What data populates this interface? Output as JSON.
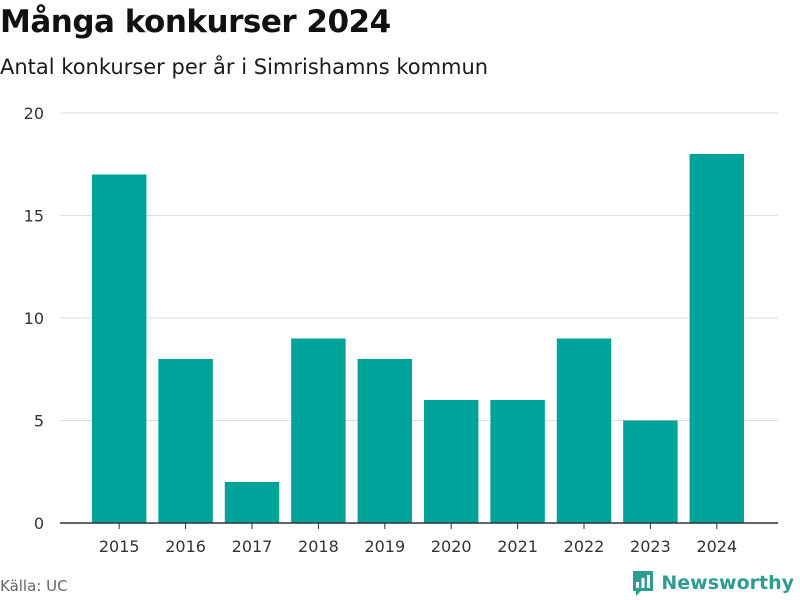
{
  "colors": {
    "bar": "#00a39a",
    "grid": "#dddddd",
    "axis": "#333333",
    "tick_text": "#333333",
    "brand": "#2f9c94"
  },
  "source": "Källa: UC",
  "brand": {
    "name": "Newsworthy",
    "icon": "newsworthy-logo-icon"
  },
  "chart_data": {
    "type": "bar",
    "title": "Många konkurser 2024",
    "subtitle": "Antal konkurser per år i Simrishamns kommun",
    "categories": [
      "2015",
      "2016",
      "2017",
      "2018",
      "2019",
      "2020",
      "2021",
      "2022",
      "2023",
      "2024"
    ],
    "values": [
      17,
      8,
      2,
      9,
      8,
      6,
      6,
      9,
      5,
      18
    ],
    "ylim": [
      0,
      20
    ],
    "yticks": [
      0,
      5,
      10,
      15,
      20
    ],
    "grid": true,
    "legend": "none"
  }
}
